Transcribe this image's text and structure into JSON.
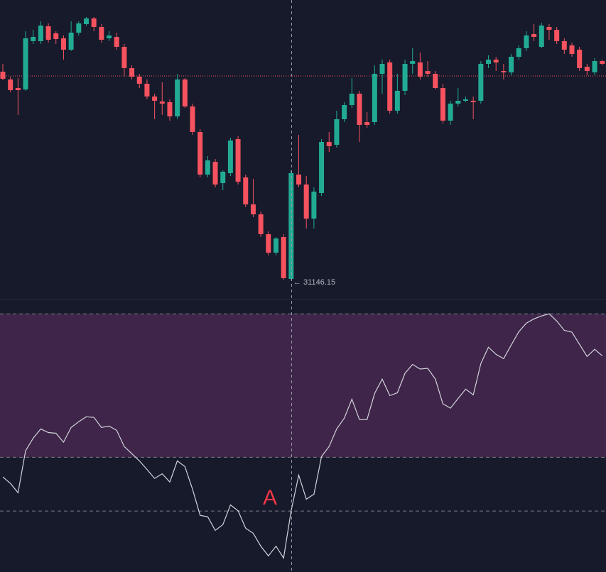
{
  "chart_data": [
    {
      "type": "candlestick",
      "open": [
        34090,
        33980,
        33860,
        33840,
        34520,
        34520,
        34730,
        34630,
        34560,
        34400,
        34640,
        34760,
        34840,
        34720,
        34560,
        34580,
        34440,
        34140,
        34020,
        33920,
        33740,
        33670,
        33660,
        33460,
        33980,
        33600,
        33240,
        32640,
        32820,
        32520,
        32660,
        33140,
        32600,
        32220,
        32080,
        31800,
        31540,
        31760,
        31170,
        32640,
        32500,
        32020,
        32380,
        33100,
        33060,
        33420,
        33620,
        33780,
        33380,
        33380,
        34060,
        34220,
        33540,
        33820,
        34200,
        34220,
        34100,
        34060,
        33860,
        33400,
        33640,
        33680,
        33680,
        33680,
        34200,
        34260,
        34100,
        34080,
        34300,
        34420,
        34620,
        34440,
        34720,
        34680,
        34520,
        34460,
        34400,
        34160,
        34080,
        34240
      ],
      "high": [
        34200,
        34020,
        34000,
        34660,
        34680,
        34800,
        34770,
        34660,
        34600,
        34800,
        34800,
        34860,
        34860,
        34760,
        34660,
        34640,
        34480,
        34180,
        34060,
        33980,
        33780,
        33940,
        33700,
        34060,
        34000,
        33640,
        33280,
        32900,
        32860,
        32700,
        33160,
        33180,
        32640,
        32580,
        32120,
        31840,
        31760,
        31800,
        32700,
        33200,
        32620,
        32460,
        33140,
        33240,
        33540,
        33660,
        34000,
        33820,
        33520,
        34180,
        34260,
        34260,
        34060,
        34260,
        34420,
        34360,
        34240,
        34100,
        33920,
        33680,
        33860,
        33740,
        33740,
        34240,
        34320,
        34300,
        34200,
        34340,
        34460,
        34660,
        34760,
        34780,
        34760,
        34720,
        34560,
        34500,
        34440,
        34200,
        34280,
        34260
      ],
      "low": [
        33970,
        33800,
        33480,
        33820,
        34480,
        34480,
        34500,
        34480,
        34260,
        34380,
        34600,
        34740,
        34660,
        34500,
        34520,
        34400,
        34020,
        33980,
        33860,
        33700,
        33420,
        33480,
        33400,
        33420,
        33580,
        33200,
        32600,
        32600,
        32460,
        32420,
        32620,
        32500,
        32180,
        32040,
        31760,
        31500,
        31500,
        31160,
        31146.15,
        32460,
        31880,
        31880,
        32340,
        32960,
        33020,
        33380,
        33580,
        33100,
        33300,
        33340,
        33780,
        33500,
        33500,
        33760,
        34060,
        33980,
        34020,
        33840,
        33360,
        33340,
        33600,
        33660,
        33420,
        33640,
        34140,
        34100,
        33980,
        34040,
        34260,
        34380,
        34520,
        34420,
        34540,
        34480,
        34340,
        34300,
        34100,
        34040,
        34040,
        34180
      ],
      "close": [
        33990,
        33830,
        33830,
        34560,
        34580,
        34740,
        34540,
        34550,
        34400,
        34640,
        34770,
        34840,
        34720,
        34540,
        34600,
        34440,
        34140,
        34020,
        33920,
        33740,
        33680,
        33640,
        33460,
        33980,
        33600,
        33240,
        32640,
        32840,
        32500,
        32680,
        33120,
        32540,
        32220,
        32080,
        31800,
        31540,
        31740,
        31180,
        32660,
        32500,
        32020,
        32400,
        33100,
        33040,
        33420,
        33620,
        33780,
        33340,
        33340,
        34060,
        34200,
        33540,
        33820,
        34200,
        34240,
        34020,
        34060,
        33860,
        33400,
        33640,
        33680,
        33700,
        33660,
        34200,
        34260,
        34220,
        34080,
        34300,
        34420,
        34600,
        34580,
        34740,
        34680,
        34520,
        34400,
        34340,
        34140,
        34100,
        34240,
        34200
      ],
      "up_color": "#22ab94",
      "down_color": "#f7525f",
      "ylim": [
        30900,
        35100
      ],
      "price_line": 34030,
      "low_label": "← 31146.15"
    },
    {
      "type": "line",
      "values": [
        54.5,
        52.7,
        50.1,
        61.8,
        65.3,
        67.9,
        66.9,
        66.7,
        64.2,
        68.3,
        69.9,
        71.3,
        71.1,
        68.3,
        68.7,
        67.5,
        63.0,
        61.0,
        59.0,
        56.6,
        54.1,
        55.4,
        53.1,
        59.0,
        57.4,
        51.1,
        43.8,
        43.4,
        39.6,
        41.2,
        46.7,
        45.1,
        40.2,
        38.8,
        35.2,
        32.5,
        35.2,
        31.9,
        45.1,
        55.0,
        48.3,
        49.7,
        60.2,
        63.0,
        67.9,
        70.9,
        76.2,
        70.5,
        70.5,
        77.8,
        81.8,
        77.2,
        78.0,
        83.4,
        85.9,
        84.6,
        84.8,
        81.8,
        74.9,
        73.7,
        76.4,
        79.0,
        77.4,
        86.1,
        90.7,
        88.7,
        87.5,
        91.3,
        95.0,
        97.4,
        98.6,
        99.4,
        100,
        98.0,
        95.4,
        94.9,
        91.5,
        88.1,
        90.1,
        88.3
      ],
      "color": "#d1d4dc",
      "ylim": [
        28,
        104
      ],
      "levels": [
        100,
        60,
        45
      ],
      "band_color": "#3f2549",
      "annotation": "A"
    }
  ]
}
